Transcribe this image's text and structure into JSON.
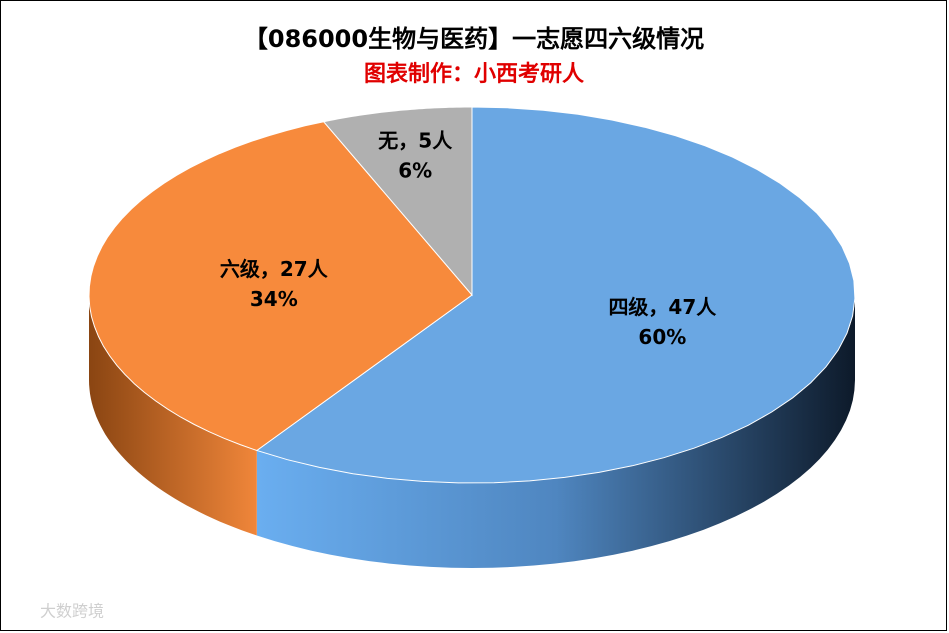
{
  "chart_data": {
    "type": "pie3d",
    "title": "【086000生物与医药】一志愿四六级情况",
    "subtitle": "图表制作：小西考研人",
    "values": [
      47,
      27,
      5
    ],
    "value_labels": [
      "四级，47人",
      "六级，27人",
      "无，5人"
    ],
    "percent_labels": [
      "60%",
      "34%",
      "6%"
    ],
    "colors": [
      "#6aa7e3",
      "#f78a3c",
      "#b0b0b0"
    ],
    "watermark": "大数跨境"
  }
}
